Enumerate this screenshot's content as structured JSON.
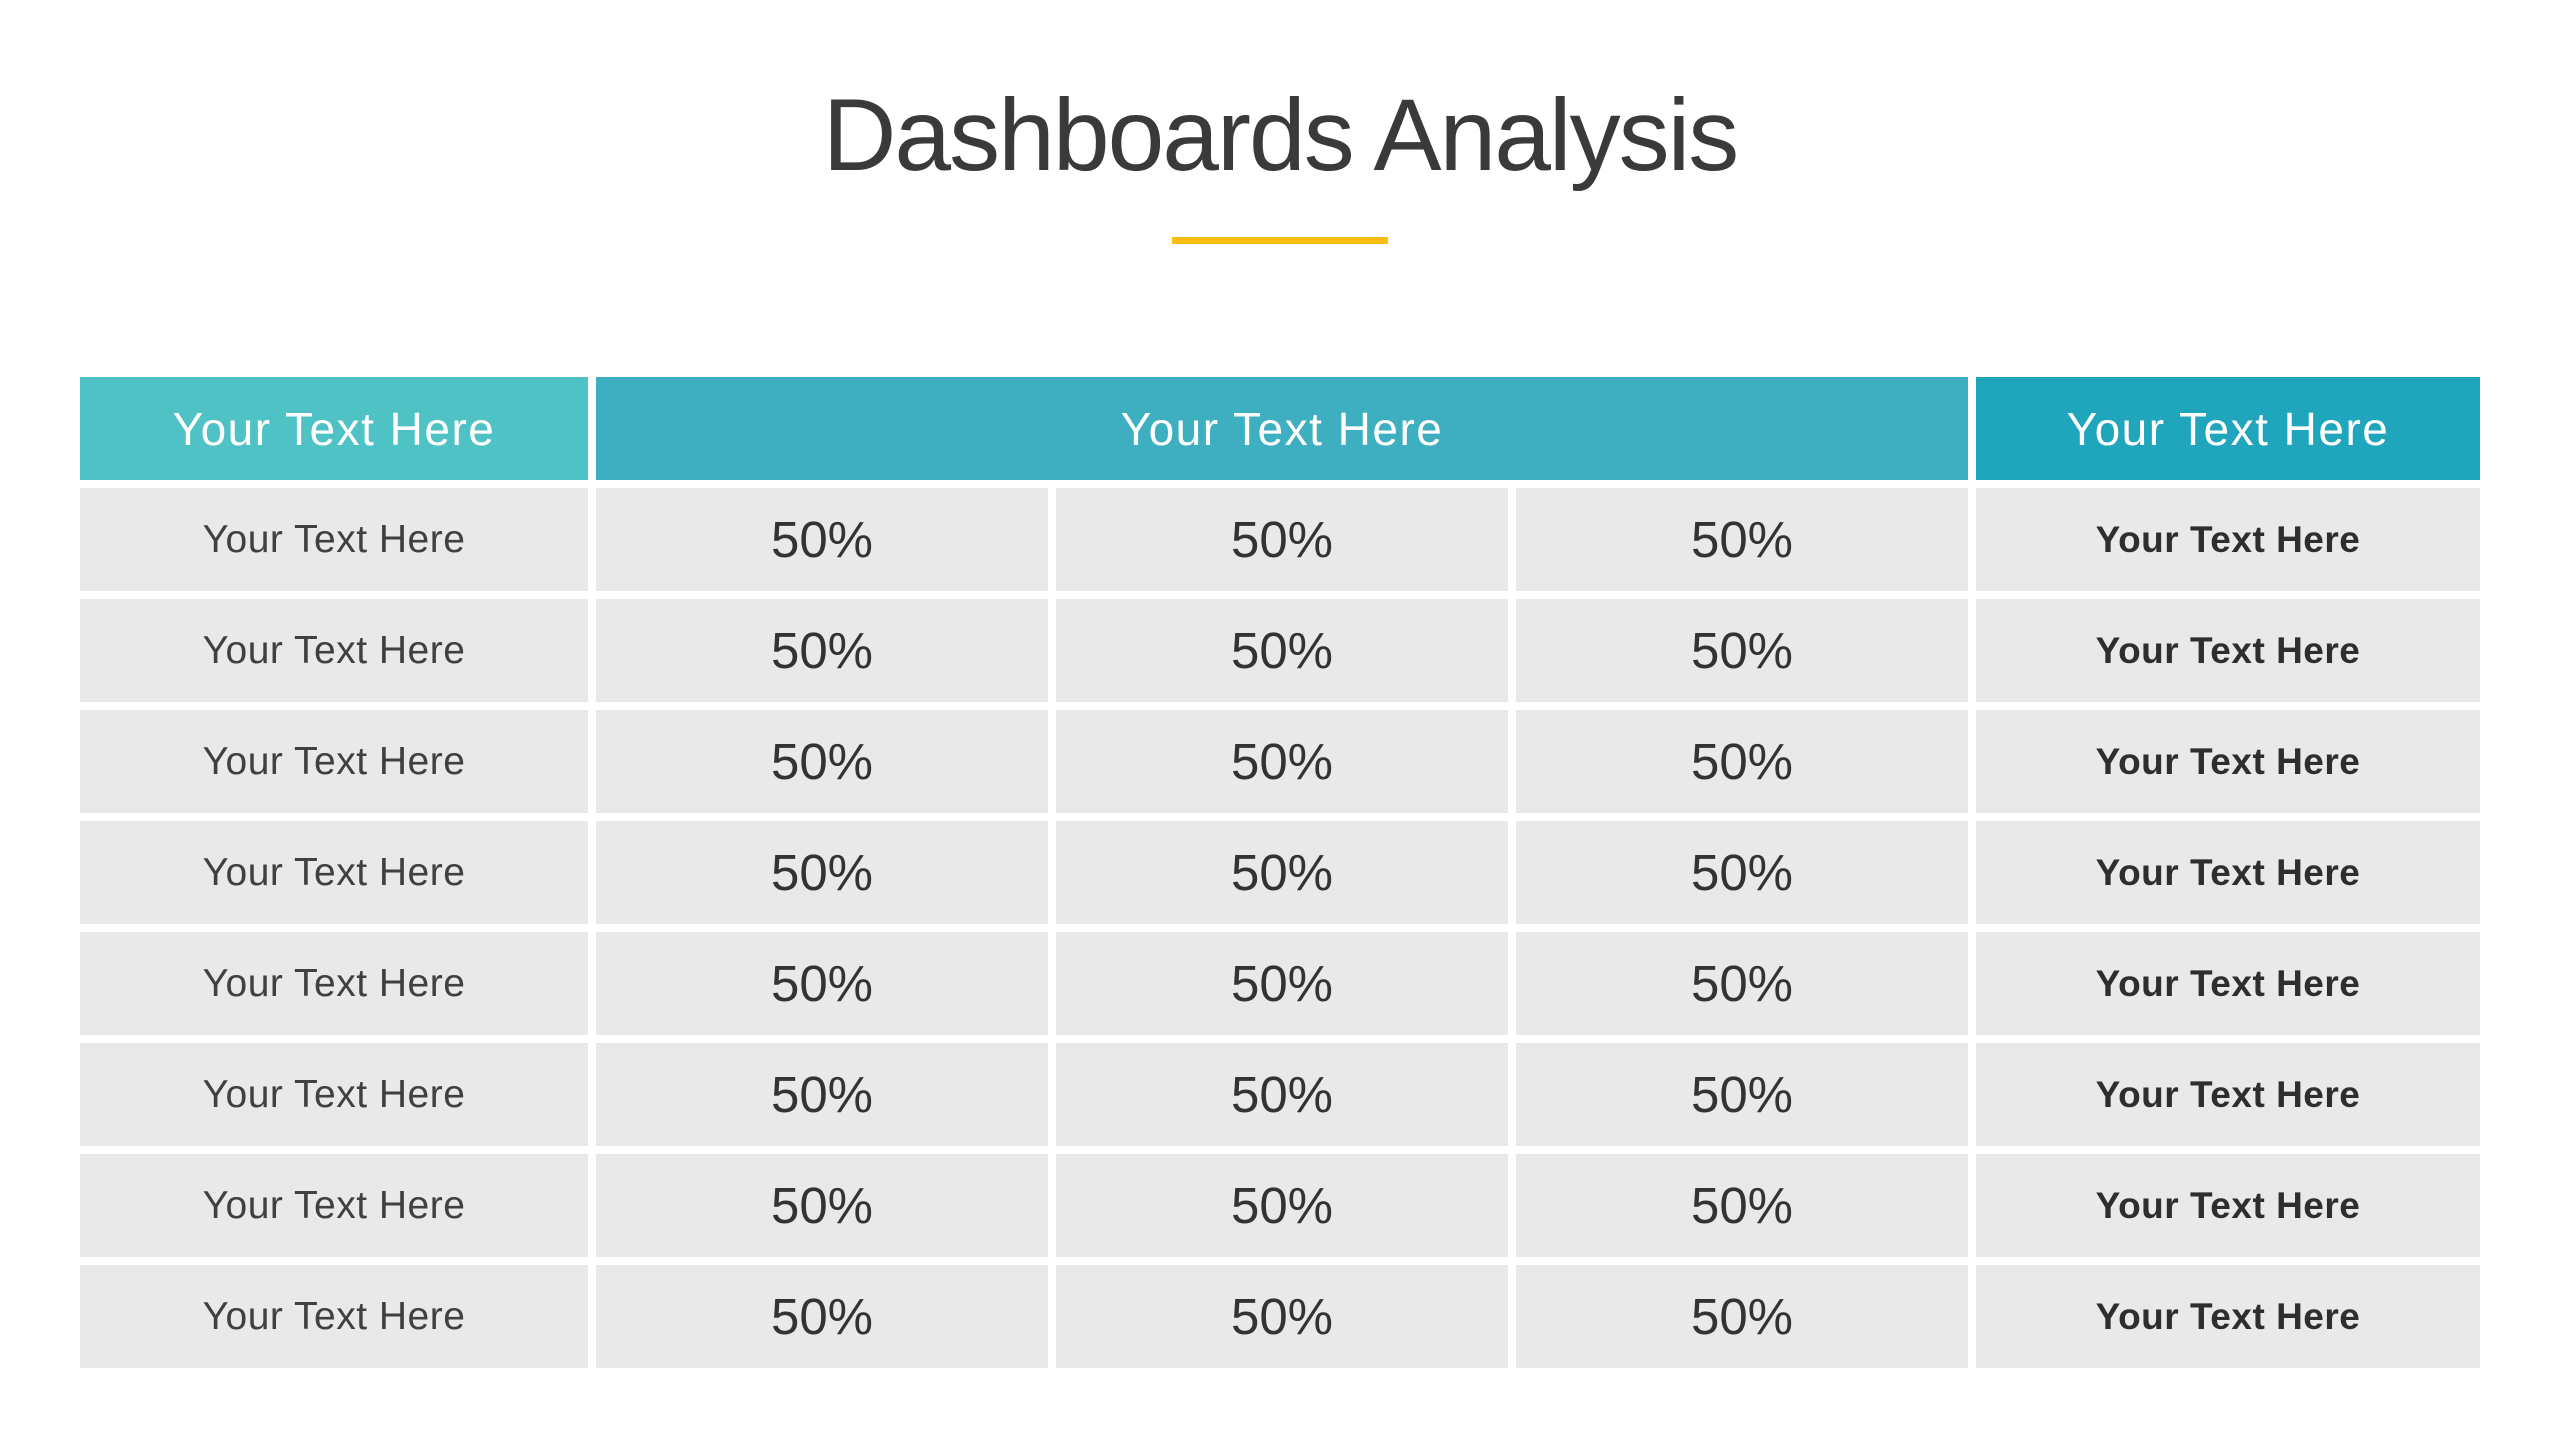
{
  "slide": {
    "title": "Dashboards Analysis",
    "divider_color": "#f9bc15",
    "background_color": "#ffffff"
  },
  "table": {
    "row_background_color": "#e9e9e9",
    "headers": [
      {
        "label": "Your Text Here",
        "color": "#4fc2c6"
      },
      {
        "label": "Your Text Here",
        "color": "#3dafc0"
      },
      {
        "label": "Your Text Here",
        "color": "#1fa5bc"
      }
    ],
    "rows": [
      {
        "label": "Your Text Here",
        "values": [
          "50%",
          "50%",
          "50%"
        ],
        "note": "Your Text Here"
      },
      {
        "label": "Your Text Here",
        "values": [
          "50%",
          "50%",
          "50%"
        ],
        "note": "Your Text Here"
      },
      {
        "label": "Your Text Here",
        "values": [
          "50%",
          "50%",
          "50%"
        ],
        "note": "Your Text Here"
      },
      {
        "label": "Your Text Here",
        "values": [
          "50%",
          "50%",
          "50%"
        ],
        "note": "Your Text Here"
      },
      {
        "label": "Your Text Here",
        "values": [
          "50%",
          "50%",
          "50%"
        ],
        "note": "Your Text Here"
      },
      {
        "label": "Your Text Here",
        "values": [
          "50%",
          "50%",
          "50%"
        ],
        "note": "Your Text Here"
      },
      {
        "label": "Your Text Here",
        "values": [
          "50%",
          "50%",
          "50%"
        ],
        "note": "Your Text Here"
      },
      {
        "label": "Your Text Here",
        "values": [
          "50%",
          "50%",
          "50%"
        ],
        "note": "Your Text Here"
      }
    ]
  }
}
